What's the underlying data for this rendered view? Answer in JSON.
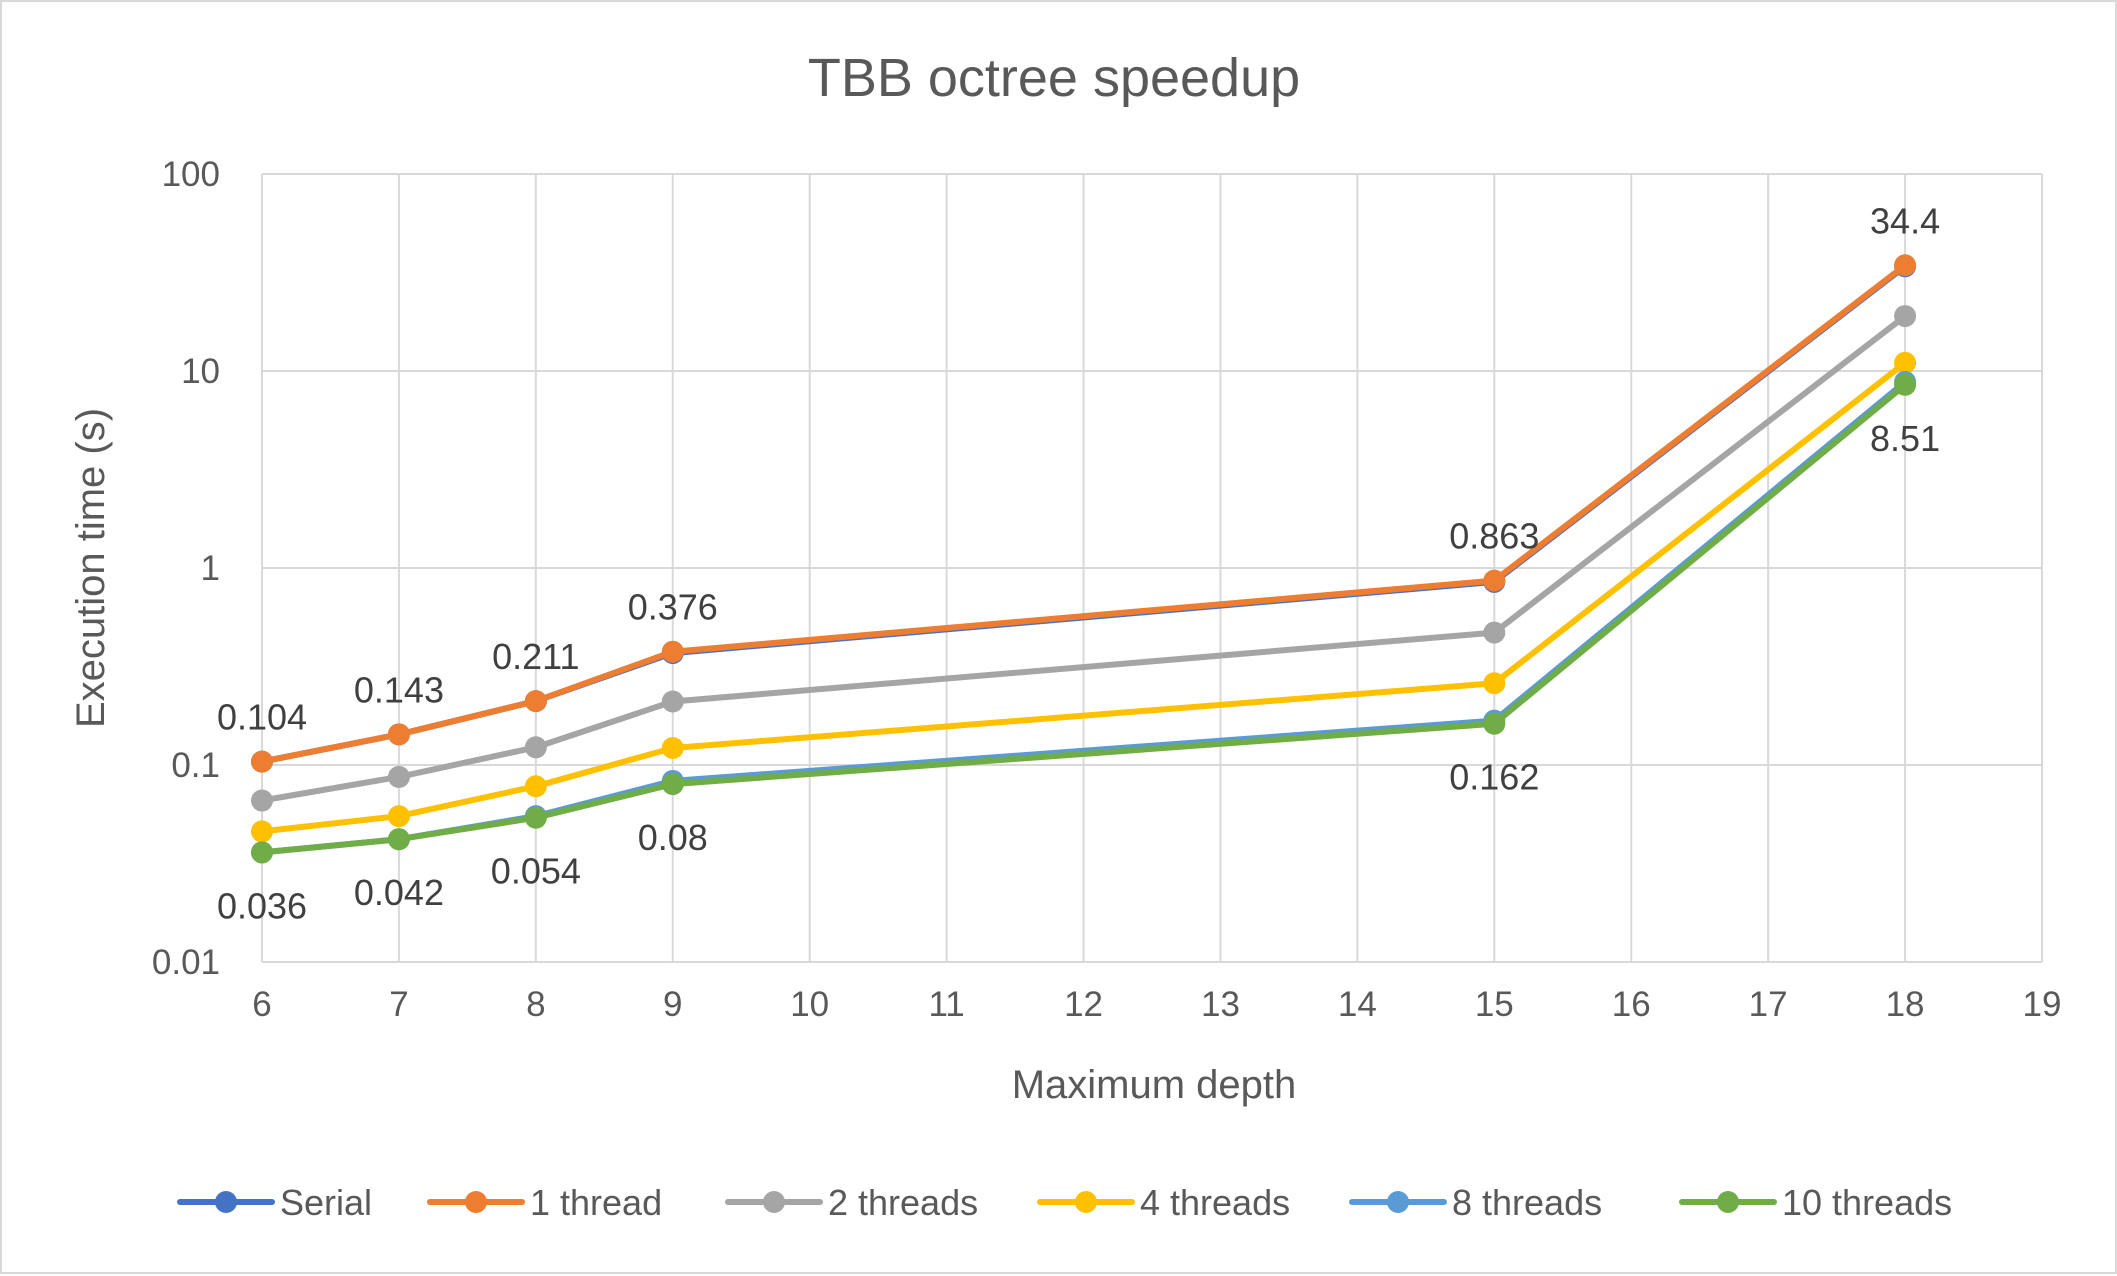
{
  "chart_data": {
    "type": "line",
    "title": "TBB octree speedup",
    "xlabel": "Maximum depth",
    "ylabel": "Execution time (s)",
    "xlim": [
      6,
      19
    ],
    "ylim": [
      0.01,
      100
    ],
    "y_scale": "log",
    "grid": true,
    "legend_position": "bottom",
    "x_ticks": [
      "6",
      "7",
      "8",
      "9",
      "10",
      "11",
      "12",
      "13",
      "14",
      "15",
      "16",
      "17",
      "18",
      "19"
    ],
    "y_ticks": [
      "0.01",
      "0.1",
      "1",
      "10",
      "100"
    ],
    "x": [
      6,
      7,
      8,
      9,
      15,
      18
    ],
    "series": [
      {
        "name": "Serial",
        "color": "#4472C4",
        "values": [
          0.104,
          0.143,
          0.211,
          0.37,
          0.85,
          34.0
        ]
      },
      {
        "name": "1 thread",
        "color": "#ED7D31",
        "values": [
          0.104,
          0.143,
          0.211,
          0.376,
          0.863,
          34.4
        ]
      },
      {
        "name": "2 threads",
        "color": "#A5A5A5",
        "values": [
          0.066,
          0.087,
          0.123,
          0.21,
          0.47,
          19.0
        ]
      },
      {
        "name": "4 threads",
        "color": "#FFC000",
        "values": [
          0.046,
          0.055,
          0.078,
          0.122,
          0.26,
          11.0
        ]
      },
      {
        "name": "8 threads",
        "color": "#5B9BD5",
        "values": [
          0.036,
          0.042,
          0.055,
          0.083,
          0.168,
          8.8
        ]
      },
      {
        "name": "10 threads",
        "color": "#70AD47",
        "values": [
          0.036,
          0.042,
          0.054,
          0.08,
          0.162,
          8.51
        ]
      }
    ],
    "data_labels": [
      {
        "x": 6,
        "y": 0.104,
        "text": "0.104",
        "pos": "above"
      },
      {
        "x": 7,
        "y": 0.143,
        "text": "0.143",
        "pos": "above"
      },
      {
        "x": 8,
        "y": 0.211,
        "text": "0.211",
        "pos": "above"
      },
      {
        "x": 9,
        "y": 0.376,
        "text": "0.376",
        "pos": "above"
      },
      {
        "x": 15,
        "y": 0.863,
        "text": "0.863",
        "pos": "above"
      },
      {
        "x": 18,
        "y": 34.4,
        "text": "34.4",
        "pos": "above"
      },
      {
        "x": 6,
        "y": 0.036,
        "text": "0.036",
        "pos": "below"
      },
      {
        "x": 7,
        "y": 0.042,
        "text": "0.042",
        "pos": "below"
      },
      {
        "x": 8,
        "y": 0.054,
        "text": "0.054",
        "pos": "below"
      },
      {
        "x": 9,
        "y": 0.08,
        "text": "0.08",
        "pos": "below"
      },
      {
        "x": 15,
        "y": 0.162,
        "text": "0.162",
        "pos": "below"
      },
      {
        "x": 18,
        "y": 8.51,
        "text": "8.51",
        "pos": "below"
      }
    ]
  }
}
